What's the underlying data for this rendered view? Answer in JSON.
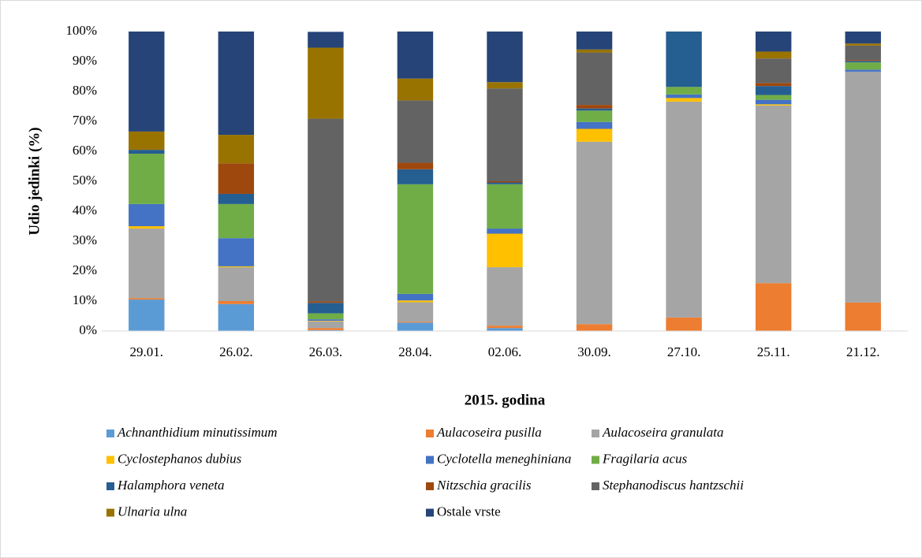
{
  "chart_data": {
    "type": "stacked_bar",
    "x_label": "2015. godina",
    "y_label": "Udio jedinki (%)",
    "categories": [
      "29.01.",
      "26.02.",
      "26.03.",
      "28.04.",
      "02.06.",
      "30.09.",
      "27.10.",
      "25.11.",
      "21.12."
    ],
    "ylim": [
      0,
      100
    ],
    "yticks": [
      {
        "value": 0,
        "label": "0%"
      },
      {
        "value": 10,
        "label": "10%"
      },
      {
        "value": 20,
        "label": "20%"
      },
      {
        "value": 30,
        "label": "30%"
      },
      {
        "value": 40,
        "label": "40%"
      },
      {
        "value": 50,
        "label": "50%"
      },
      {
        "value": 60,
        "label": "60%"
      },
      {
        "value": 70,
        "label": "70%"
      },
      {
        "value": 80,
        "label": "80%"
      },
      {
        "value": 90,
        "label": "90%"
      },
      {
        "value": 100,
        "label": "100%"
      }
    ],
    "grid": false,
    "legend": "bottom",
    "series": [
      {
        "name": "Achnanthidium minutissimum",
        "color": "#5b9bd5",
        "values": [
          10.5,
          9,
          0.3,
          2.8,
          1,
          0,
          0,
          0,
          0
        ]
      },
      {
        "name": "Aulacoseira pusilla",
        "color": "#ed7d31",
        "values": [
          0.5,
          1,
          0.7,
          0.3,
          0.8,
          2.3,
          4.5,
          16,
          9.5
        ]
      },
      {
        "name": "Aulacoseira granulata",
        "color": "#a5a5a5",
        "values": [
          23.2,
          11.3,
          2.2,
          6.5,
          19.5,
          60.9,
          72.1,
          59.3,
          77.1
        ]
      },
      {
        "name": "Cyclostephanos dubius",
        "color": "#ffc000",
        "values": [
          0.8,
          0.3,
          0.2,
          0.6,
          11.2,
          4.3,
          1.2,
          0.4,
          0
        ]
      },
      {
        "name": "Cyclotella meneghiniana",
        "color": "#4472c4",
        "values": [
          7.4,
          9.4,
          0.5,
          2.2,
          1.7,
          2.3,
          1.2,
          1.5,
          0.7
        ]
      },
      {
        "name": "Fragilaria acus",
        "color": "#70ad47",
        "values": [
          16.8,
          11.4,
          2,
          36.6,
          14.8,
          3.8,
          2.5,
          1.6,
          2.4
        ]
      },
      {
        "name": "Halamphora veneta",
        "color": "#255e91",
        "values": [
          1.3,
          3.4,
          3.5,
          5,
          0.6,
          0.7,
          18.5,
          3,
          0.5
        ]
      },
      {
        "name": "Nitzschia gracilis",
        "color": "#9e480e",
        "values": [
          0,
          10.2,
          0.5,
          2.2,
          0.4,
          1.2,
          0,
          1,
          0.3
        ]
      },
      {
        "name": "Stephanodiscus hantzschii",
        "color": "#636363",
        "values": [
          0,
          0,
          61,
          20.8,
          31,
          17.5,
          0,
          8.2,
          4.8
        ]
      },
      {
        "name": "Ulnaria ulna",
        "color": "#997300",
        "values": [
          6.1,
          9.5,
          23.7,
          7.3,
          2.1,
          1,
          0,
          2.3,
          0.7
        ]
      },
      {
        "name": "Ostale vrste",
        "color": "#264478",
        "values": [
          33.4,
          34.5,
          5.3,
          15.7,
          16.9,
          6,
          0,
          6.7,
          4
        ]
      }
    ]
  }
}
